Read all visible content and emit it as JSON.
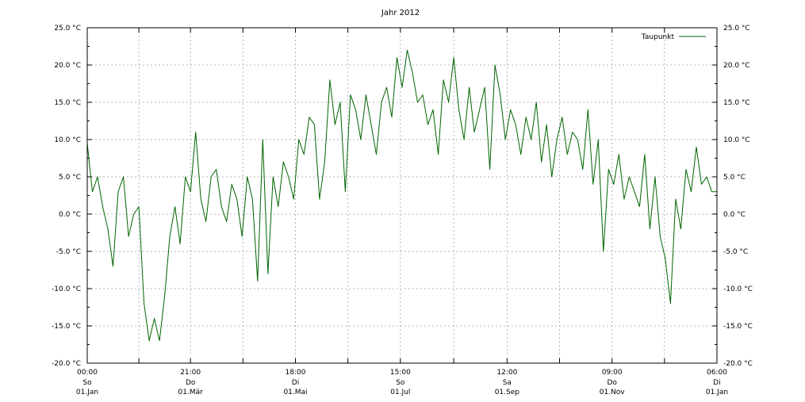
{
  "chart_data": {
    "type": "line",
    "title": "Jahr 2012",
    "ylim": [
      -20,
      25
    ],
    "y_ticks": [
      25,
      20,
      15,
      10,
      5,
      0,
      -5,
      -10,
      -15,
      -20
    ],
    "y_tick_labels": [
      "25.0 °C",
      "20.0 °C",
      "15.0 °C",
      "10.0 °C",
      "5.0 °C",
      "0.0 °C",
      "-5.0 °C",
      "-10.0 °C",
      "-15.0 °C",
      "-20.0 °C"
    ],
    "x_range": [
      "2012-01-01",
      "2013-01-01"
    ],
    "x_ticks": [
      {
        "date": "2012-01-01",
        "time": "00:00",
        "day": "So",
        "label": "01.Jan"
      },
      {
        "date": "2012-03-01",
        "time": "21:00",
        "day": "Do",
        "label": "01.Mär"
      },
      {
        "date": "2012-05-01",
        "time": "18:00",
        "day": "Di",
        "label": "01.Mai"
      },
      {
        "date": "2012-07-01",
        "time": "15:00",
        "day": "So",
        "label": "01.Jul"
      },
      {
        "date": "2012-09-01",
        "time": "12:00",
        "day": "Sa",
        "label": "01.Sep"
      },
      {
        "date": "2012-11-01",
        "time": "09:00",
        "day": "Do",
        "label": "01.Nov"
      },
      {
        "date": "2013-01-01",
        "time": "06:00",
        "day": "Di",
        "label": "01.Jan"
      }
    ],
    "grid": true,
    "legend_position": "top-right",
    "series": [
      {
        "name": "Taupunkt",
        "color": "#006400",
        "x": [
          "2012-01-01",
          "2012-01-04",
          "2012-01-07",
          "2012-01-10",
          "2012-01-13",
          "2012-01-16",
          "2012-01-19",
          "2012-01-22",
          "2012-01-25",
          "2012-01-28",
          "2012-01-31",
          "2012-02-03",
          "2012-02-06",
          "2012-02-09",
          "2012-02-12",
          "2012-02-15",
          "2012-02-18",
          "2012-02-21",
          "2012-02-24",
          "2012-02-27",
          "2012-03-01",
          "2012-03-04",
          "2012-03-07",
          "2012-03-10",
          "2012-03-13",
          "2012-03-16",
          "2012-03-19",
          "2012-03-22",
          "2012-03-25",
          "2012-03-28",
          "2012-03-31",
          "2012-04-03",
          "2012-04-06",
          "2012-04-09",
          "2012-04-12",
          "2012-04-15",
          "2012-04-18",
          "2012-04-21",
          "2012-04-24",
          "2012-04-27",
          "2012-04-30",
          "2012-05-03",
          "2012-05-06",
          "2012-05-09",
          "2012-05-12",
          "2012-05-15",
          "2012-05-18",
          "2012-05-21",
          "2012-05-24",
          "2012-05-27",
          "2012-05-30",
          "2012-06-02",
          "2012-06-05",
          "2012-06-08",
          "2012-06-11",
          "2012-06-14",
          "2012-06-17",
          "2012-06-20",
          "2012-06-23",
          "2012-06-26",
          "2012-06-29",
          "2012-07-02",
          "2012-07-05",
          "2012-07-08",
          "2012-07-11",
          "2012-07-14",
          "2012-07-17",
          "2012-07-20",
          "2012-07-23",
          "2012-07-26",
          "2012-07-29",
          "2012-08-01",
          "2012-08-04",
          "2012-08-07",
          "2012-08-10",
          "2012-08-13",
          "2012-08-16",
          "2012-08-19",
          "2012-08-22",
          "2012-08-25",
          "2012-08-28",
          "2012-08-31",
          "2012-09-03",
          "2012-09-06",
          "2012-09-09",
          "2012-09-12",
          "2012-09-15",
          "2012-09-18",
          "2012-09-21",
          "2012-09-24",
          "2012-09-27",
          "2012-09-30",
          "2012-10-03",
          "2012-10-06",
          "2012-10-09",
          "2012-10-12",
          "2012-10-15",
          "2012-10-18",
          "2012-10-21",
          "2012-10-24",
          "2012-10-27",
          "2012-10-30",
          "2012-11-02",
          "2012-11-05",
          "2012-11-08",
          "2012-11-11",
          "2012-11-14",
          "2012-11-17",
          "2012-11-20",
          "2012-11-23",
          "2012-11-26",
          "2012-11-29",
          "2012-12-02",
          "2012-12-05",
          "2012-12-08",
          "2012-12-11",
          "2012-12-14",
          "2012-12-17",
          "2012-12-20",
          "2012-12-23",
          "2012-12-26",
          "2012-12-29",
          "2013-01-01"
        ],
        "values": [
          9.5,
          3,
          5,
          1,
          -2,
          -7,
          3,
          5,
          -3,
          0,
          1,
          -12,
          -17,
          -14,
          -17,
          -11,
          -3,
          1,
          -4,
          5,
          3,
          11,
          2,
          -1,
          5,
          6,
          1,
          -1,
          4,
          2,
          -3,
          5,
          2,
          -9,
          10,
          -8,
          5,
          1,
          7,
          5,
          2,
          10,
          8,
          13,
          12,
          2,
          7,
          18,
          12,
          15,
          3,
          16,
          14,
          10,
          16,
          12,
          8,
          15,
          17,
          13,
          21,
          17,
          22,
          19,
          15,
          16,
          12,
          14,
          8,
          18,
          15,
          21,
          14,
          10,
          17,
          11,
          14,
          17,
          6,
          20,
          16,
          10,
          14,
          12,
          8,
          13,
          10,
          15,
          7,
          12,
          5,
          10,
          13,
          8,
          11,
          10,
          6,
          14,
          4,
          10,
          -5,
          6,
          4,
          8,
          2,
          5,
          3,
          1,
          8,
          -2,
          5,
          -3,
          -6,
          -12,
          2,
          -2,
          6,
          3,
          9,
          4,
          5,
          3,
          3
        ]
      }
    ]
  }
}
